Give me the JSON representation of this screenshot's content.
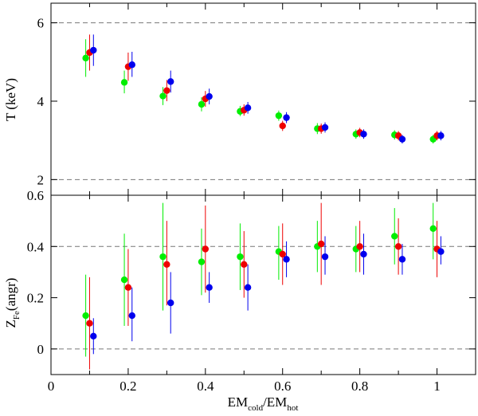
{
  "chart_data": [
    {
      "type": "scatter",
      "panel": "top",
      "ylabel": "T (keV)",
      "ylim": [
        1.6,
        6.5
      ],
      "xlim": [
        0,
        1.1
      ],
      "yticks": [
        2,
        4,
        6
      ],
      "reference_lines_y": [
        2,
        6
      ],
      "series": [
        {
          "color": "#00ee00",
          "dx": -0.01,
          "points": [
            {
              "x": 0.1,
              "y": 5.1,
              "lo": 4.62,
              "hi": 5.58
            },
            {
              "x": 0.2,
              "y": 4.48,
              "lo": 4.2,
              "hi": 4.78
            },
            {
              "x": 0.3,
              "y": 4.13,
              "lo": 3.9,
              "hi": 4.36
            },
            {
              "x": 0.4,
              "y": 3.92,
              "lo": 3.74,
              "hi": 4.1
            },
            {
              "x": 0.5,
              "y": 3.74,
              "lo": 3.62,
              "hi": 3.88
            },
            {
              "x": 0.6,
              "y": 3.63,
              "lo": 3.5,
              "hi": 3.76
            },
            {
              "x": 0.7,
              "y": 3.3,
              "lo": 3.16,
              "hi": 3.44
            },
            {
              "x": 0.8,
              "y": 3.16,
              "lo": 3.04,
              "hi": 3.28
            },
            {
              "x": 0.9,
              "y": 3.14,
              "lo": 3.02,
              "hi": 3.26
            },
            {
              "x": 1.0,
              "y": 3.03,
              "lo": 2.92,
              "hi": 3.14
            }
          ]
        },
        {
          "color": "#ee0000",
          "dx": 0.0,
          "points": [
            {
              "x": 0.1,
              "y": 5.24,
              "lo": 4.78,
              "hi": 5.7
            },
            {
              "x": 0.2,
              "y": 4.88,
              "lo": 4.52,
              "hi": 5.24
            },
            {
              "x": 0.3,
              "y": 4.27,
              "lo": 4.0,
              "hi": 4.54
            },
            {
              "x": 0.4,
              "y": 4.06,
              "lo": 3.86,
              "hi": 4.26
            },
            {
              "x": 0.5,
              "y": 3.77,
              "lo": 3.63,
              "hi": 3.92
            },
            {
              "x": 0.6,
              "y": 3.37,
              "lo": 3.24,
              "hi": 3.5
            },
            {
              "x": 0.7,
              "y": 3.3,
              "lo": 3.17,
              "hi": 3.43
            },
            {
              "x": 0.8,
              "y": 3.2,
              "lo": 3.08,
              "hi": 3.32
            },
            {
              "x": 0.9,
              "y": 3.12,
              "lo": 3.0,
              "hi": 3.24
            },
            {
              "x": 1.0,
              "y": 3.12,
              "lo": 3.0,
              "hi": 3.24
            }
          ]
        },
        {
          "color": "#0000ee",
          "dx": 0.01,
          "points": [
            {
              "x": 0.1,
              "y": 5.3,
              "lo": 4.9,
              "hi": 5.7
            },
            {
              "x": 0.2,
              "y": 4.93,
              "lo": 4.62,
              "hi": 5.26
            },
            {
              "x": 0.3,
              "y": 4.5,
              "lo": 4.22,
              "hi": 4.78
            },
            {
              "x": 0.4,
              "y": 4.12,
              "lo": 3.92,
              "hi": 4.32
            },
            {
              "x": 0.5,
              "y": 3.83,
              "lo": 3.68,
              "hi": 3.98
            },
            {
              "x": 0.6,
              "y": 3.58,
              "lo": 3.44,
              "hi": 3.72
            },
            {
              "x": 0.7,
              "y": 3.33,
              "lo": 3.2,
              "hi": 3.46
            },
            {
              "x": 0.8,
              "y": 3.16,
              "lo": 3.04,
              "hi": 3.28
            },
            {
              "x": 0.9,
              "y": 3.03,
              "lo": 2.92,
              "hi": 3.14
            },
            {
              "x": 1.0,
              "y": 3.12,
              "lo": 3.0,
              "hi": 3.24
            }
          ]
        }
      ]
    },
    {
      "type": "scatter",
      "panel": "bottom",
      "xlabel": "EM",
      "xlabel_sub_num": "cold",
      "xlabel_sep": "/EM",
      "xlabel_sub_den": "hot",
      "ylabel_main": "Z",
      "ylabel_sub": "Fe",
      "ylabel_rest": "(angr)",
      "ylim": [
        -0.1,
        0.6
      ],
      "xlim": [
        0,
        1.1
      ],
      "yticks": [
        "0",
        "0.2",
        "0.4",
        "0.6"
      ],
      "xticks": [
        "0",
        "0.2",
        "0.4",
        "0.6",
        "0.8",
        "1"
      ],
      "reference_lines_y": [
        0,
        0.4
      ],
      "series": [
        {
          "color": "#00ee00",
          "dx": -0.01,
          "points": [
            {
              "x": 0.1,
              "y": 0.13,
              "lo": -0.03,
              "hi": 0.29
            },
            {
              "x": 0.2,
              "y": 0.27,
              "lo": 0.09,
              "hi": 0.45
            },
            {
              "x": 0.3,
              "y": 0.36,
              "lo": 0.15,
              "hi": 0.57
            },
            {
              "x": 0.4,
              "y": 0.34,
              "lo": 0.21,
              "hi": 0.47
            },
            {
              "x": 0.5,
              "y": 0.36,
              "lo": 0.23,
              "hi": 0.49
            },
            {
              "x": 0.6,
              "y": 0.38,
              "lo": 0.27,
              "hi": 0.48
            },
            {
              "x": 0.7,
              "y": 0.4,
              "lo": 0.3,
              "hi": 0.5
            },
            {
              "x": 0.8,
              "y": 0.39,
              "lo": 0.3,
              "hi": 0.48
            },
            {
              "x": 0.9,
              "y": 0.44,
              "lo": 0.33,
              "hi": 0.55
            },
            {
              "x": 1.0,
              "y": 0.47,
              "lo": 0.35,
              "hi": 0.57
            }
          ]
        },
        {
          "color": "#ee0000",
          "dx": 0.0,
          "points": [
            {
              "x": 0.1,
              "y": 0.1,
              "lo": -0.08,
              "hi": 0.28
            },
            {
              "x": 0.2,
              "y": 0.24,
              "lo": 0.09,
              "hi": 0.39
            },
            {
              "x": 0.3,
              "y": 0.33,
              "lo": 0.17,
              "hi": 0.5
            },
            {
              "x": 0.4,
              "y": 0.39,
              "lo": 0.22,
              "hi": 0.56
            },
            {
              "x": 0.5,
              "y": 0.33,
              "lo": 0.2,
              "hi": 0.46
            },
            {
              "x": 0.6,
              "y": 0.37,
              "lo": 0.25,
              "hi": 0.49
            },
            {
              "x": 0.7,
              "y": 0.41,
              "lo": 0.25,
              "hi": 0.57
            },
            {
              "x": 0.8,
              "y": 0.4,
              "lo": 0.3,
              "hi": 0.5
            },
            {
              "x": 0.9,
              "y": 0.4,
              "lo": 0.29,
              "hi": 0.51
            },
            {
              "x": 1.0,
              "y": 0.39,
              "lo": 0.28,
              "hi": 0.5
            }
          ]
        },
        {
          "color": "#0000ee",
          "dx": 0.01,
          "points": [
            {
              "x": 0.1,
              "y": 0.05,
              "lo": -0.02,
              "hi": 0.12
            },
            {
              "x": 0.2,
              "y": 0.13,
              "lo": 0.03,
              "hi": 0.24
            },
            {
              "x": 0.3,
              "y": 0.18,
              "lo": 0.06,
              "hi": 0.3
            },
            {
              "x": 0.4,
              "y": 0.24,
              "lo": 0.18,
              "hi": 0.3
            },
            {
              "x": 0.5,
              "y": 0.24,
              "lo": 0.15,
              "hi": 0.33
            },
            {
              "x": 0.6,
              "y": 0.35,
              "lo": 0.28,
              "hi": 0.42
            },
            {
              "x": 0.7,
              "y": 0.36,
              "lo": 0.29,
              "hi": 0.44
            },
            {
              "x": 0.8,
              "y": 0.37,
              "lo": 0.29,
              "hi": 0.45
            },
            {
              "x": 0.9,
              "y": 0.35,
              "lo": 0.29,
              "hi": 0.41
            },
            {
              "x": 1.0,
              "y": 0.38,
              "lo": 0.33,
              "hi": 0.44
            }
          ]
        }
      ]
    }
  ]
}
